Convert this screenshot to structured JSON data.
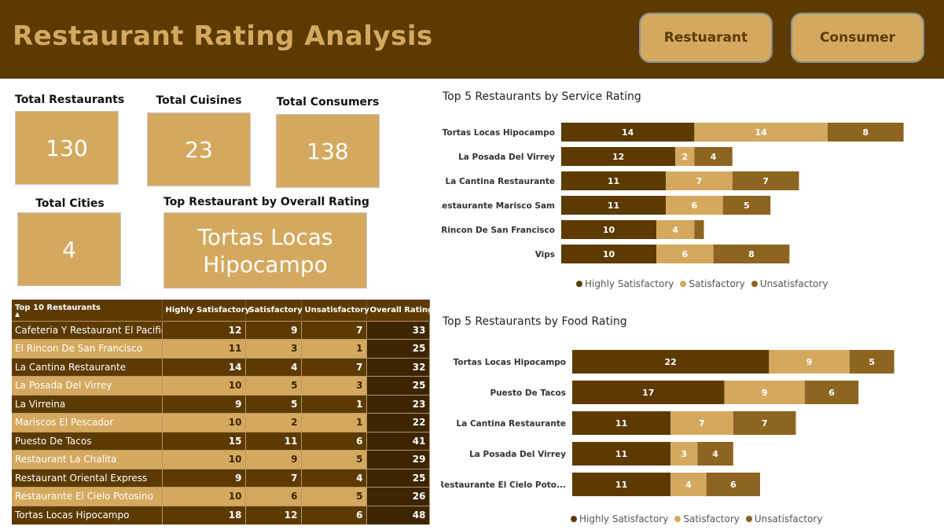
{
  "header": {
    "title": "Restaurant Rating Analysis",
    "buttons": [
      "Restuarant",
      "Consumer"
    ]
  },
  "kpis": {
    "total_restaurants": {
      "label": "Total  Restaurants",
      "value": "130"
    },
    "total_cuisines": {
      "label": "Total  Cuisines",
      "value": "23"
    },
    "total_consumers": {
      "label": "Total  Consumers",
      "value": "138"
    },
    "total_cities": {
      "label": "Total  Cities",
      "value": "4"
    },
    "top_restaurant": {
      "label": "Top  Restaurant by Overall Rating",
      "line1": "Tortas Locas",
      "line2": "Hipocampo"
    }
  },
  "colors": {
    "dark": "#5c3a00",
    "light": "#d4a95f",
    "medium": "#8d6520",
    "header": "#5c3a00"
  },
  "top10_table": {
    "headers": [
      "Top 10 Restaurants",
      "Highly Satisfactory",
      "Satisfactory",
      "Unsatisfactory",
      "Overall Rating"
    ],
    "rows": [
      [
        "Cafeteria Y Restaurant El Pacifico",
        "12",
        "9",
        "7",
        "33"
      ],
      [
        "El Rincon De San Francisco",
        "11",
        "3",
        "1",
        "25"
      ],
      [
        "La Cantina Restaurante",
        "14",
        "4",
        "7",
        "32"
      ],
      [
        "La Posada Del Virrey",
        "10",
        "5",
        "3",
        "25"
      ],
      [
        "La Virreina",
        "9",
        "5",
        "1",
        "23"
      ],
      [
        "Mariscos El Pescador",
        "10",
        "2",
        "1",
        "22"
      ],
      [
        "Puesto De Tacos",
        "15",
        "11",
        "6",
        "41"
      ],
      [
        "Restaurant La Chalita",
        "10",
        "9",
        "5",
        "29"
      ],
      [
        "Restaurant Oriental Express",
        "9",
        "7",
        "4",
        "25"
      ],
      [
        "Restaurante El Cielo Potosino",
        "10",
        "6",
        "5",
        "26"
      ],
      [
        "Tortas Locas Hipocampo",
        "18",
        "12",
        "6",
        "48"
      ]
    ]
  },
  "chart_data": [
    {
      "type": "bar",
      "orientation": "horizontal",
      "stacked": true,
      "title": "Top 5 Restaurants by Service Rating",
      "categories": [
        "Tortas Locas Hipocampo",
        "La Posada Del Virrey",
        "La Cantina Restaurante",
        "Restaurante Marisco Sam",
        "El Rincon De San Francisco",
        "Vips"
      ],
      "series": [
        {
          "name": "Highly Satisfactory",
          "values": [
            14,
            12,
            11,
            11,
            10,
            10
          ]
        },
        {
          "name": "Satisfactory",
          "values": [
            14,
            2,
            7,
            6,
            4,
            6
          ]
        },
        {
          "name": "Unsatisfactory",
          "values": [
            8,
            4,
            7,
            5,
            1,
            8
          ]
        }
      ],
      "labels": [
        [
          "14",
          "12",
          "11",
          "11",
          "10",
          "10"
        ],
        [
          "14",
          "2",
          "7",
          "6",
          "4",
          "6"
        ],
        [
          "8",
          "4",
          "7",
          "5",
          "",
          "8"
        ]
      ],
      "legend": "bottom"
    },
    {
      "type": "bar",
      "orientation": "horizontal",
      "stacked": true,
      "title": "Top 5 Restaurants by Food Rating",
      "categories": [
        "Tortas Locas Hipocampo",
        "Puesto De Tacos",
        "La Cantina Restaurante",
        "La Posada Del Virrey",
        "Restaurante El Cielo Poto..."
      ],
      "series": [
        {
          "name": "Highly Satisfactory",
          "values": [
            22,
            17,
            11,
            11,
            11
          ]
        },
        {
          "name": "Satisfactory",
          "values": [
            9,
            9,
            7,
            3,
            4
          ]
        },
        {
          "name": "Unsatisfactory",
          "values": [
            5,
            6,
            7,
            4,
            6
          ]
        }
      ],
      "labels": [
        [
          "22",
          "17",
          "11",
          "11",
          "11"
        ],
        [
          "9",
          "9",
          "7",
          "3",
          "4"
        ],
        [
          "5",
          "6",
          "7",
          "4",
          "6"
        ]
      ],
      "legend": "bottom"
    }
  ]
}
